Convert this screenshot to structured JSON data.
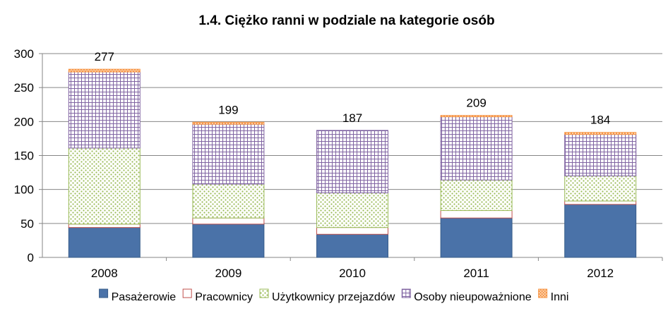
{
  "chart_data": {
    "type": "bar",
    "stacked": true,
    "title": "1.4. Ciężko ranni w podziale na kategorie osób",
    "categories": [
      "2008",
      "2009",
      "2010",
      "2011",
      "2012"
    ],
    "ylim": [
      0,
      300
    ],
    "yticks": [
      "0",
      "50",
      "100",
      "150",
      "200",
      "250",
      "300"
    ],
    "grid": true,
    "legend_position": "bottom",
    "series": [
      {
        "name": "Pasażerowie",
        "values": [
          44,
          49,
          34,
          58,
          78
        ],
        "color": "#4a72a8",
        "pattern": "solid"
      },
      {
        "name": "Pracownicy",
        "values": [
          5,
          9,
          10,
          11,
          5
        ],
        "color": "#c0504d",
        "pattern": "outline"
      },
      {
        "name": "Użytkownicy przejazdów",
        "values": [
          112,
          50,
          51,
          45,
          37
        ],
        "color": "#9bbb59",
        "pattern": "dots"
      },
      {
        "name": "Osoby nieupoważnione",
        "values": [
          112,
          88,
          92,
          93,
          61
        ],
        "color": "#8064a2",
        "pattern": "grid"
      },
      {
        "name": "Inni",
        "values": [
          4,
          3,
          0,
          2,
          3
        ],
        "color": "#f79646",
        "pattern": "checker"
      }
    ],
    "totals": [
      "277",
      "199",
      "187",
      "209",
      "184"
    ]
  }
}
